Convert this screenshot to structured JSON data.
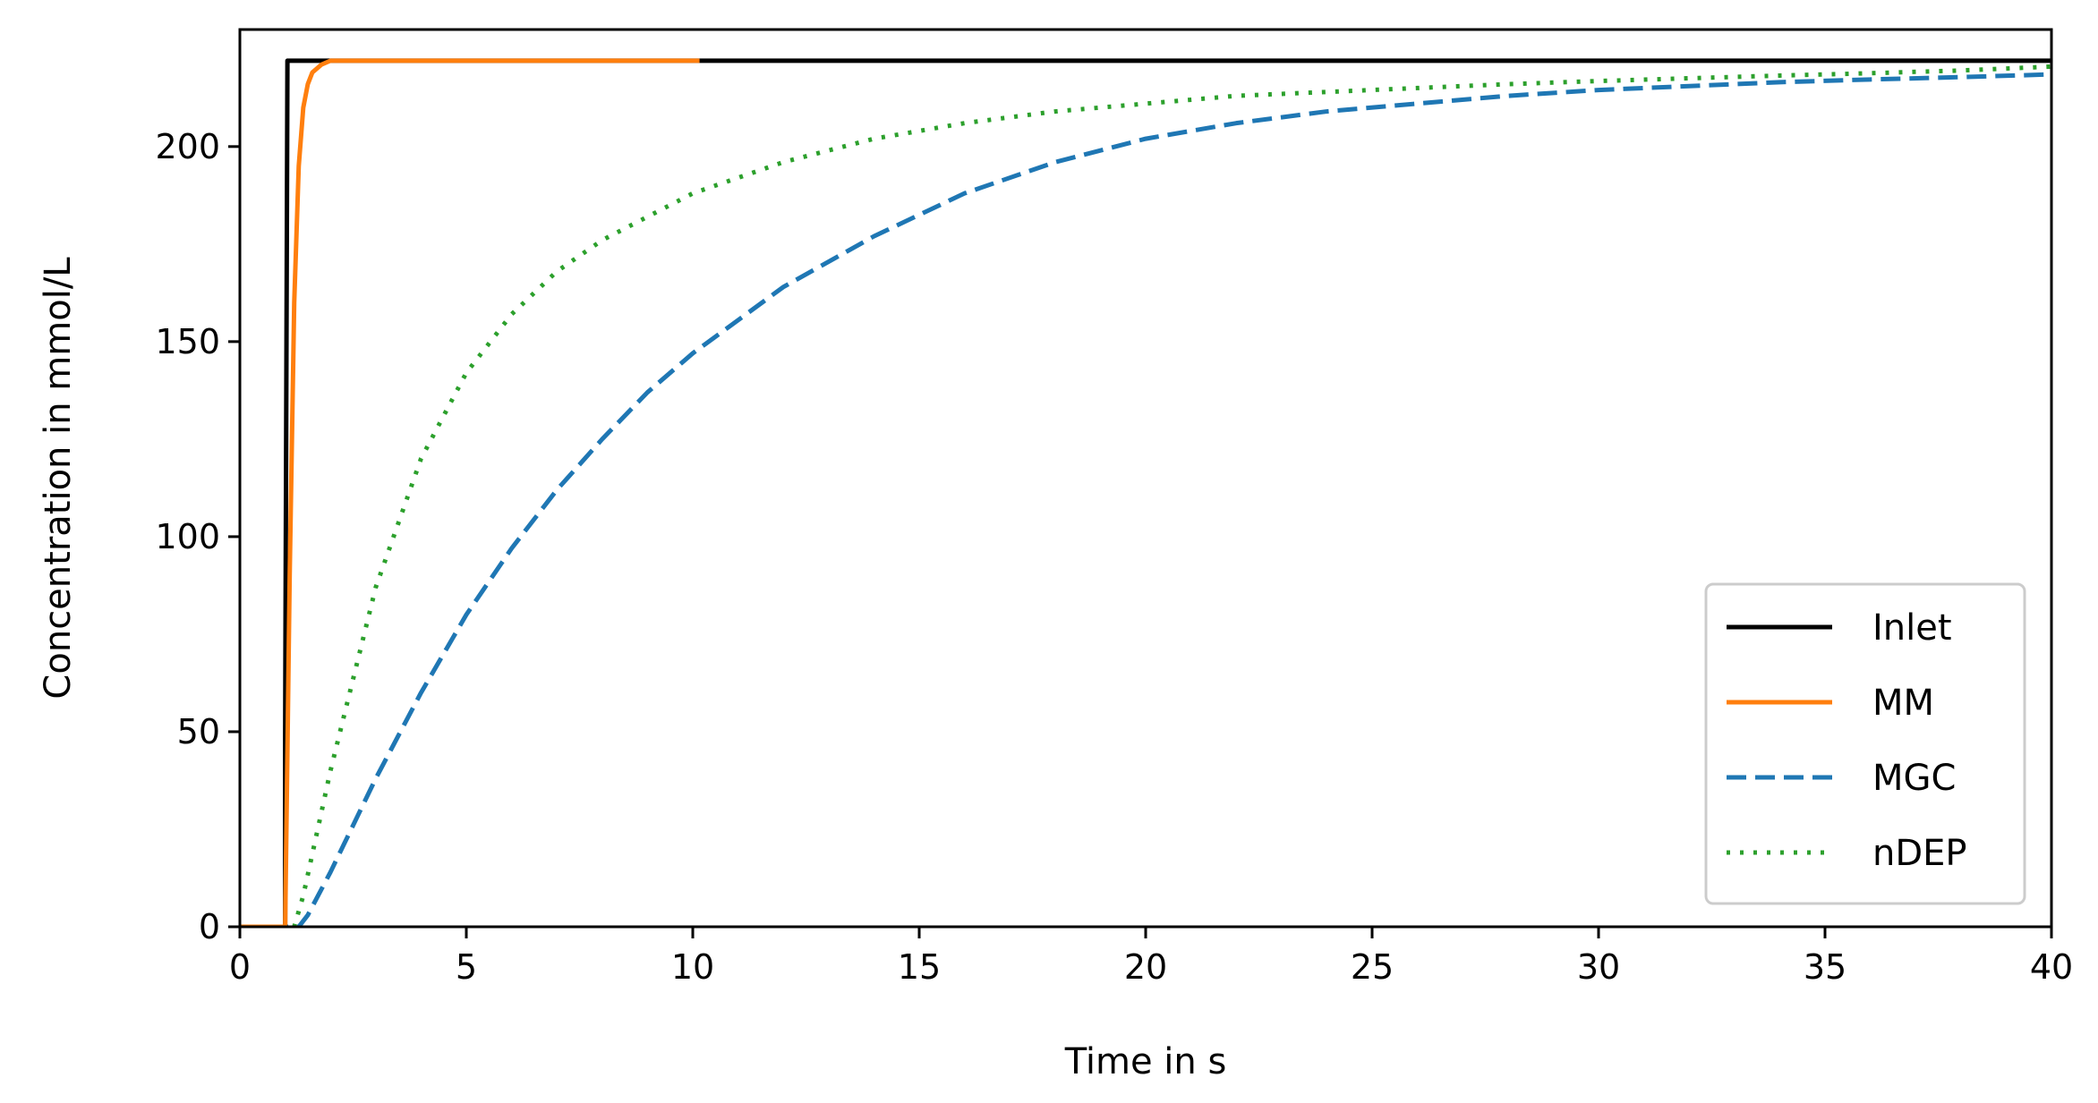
{
  "chart_data": {
    "type": "line",
    "title": "",
    "xlabel": "Time in s",
    "ylabel": "Concentration in mmol/L",
    "xlim": [
      0,
      40
    ],
    "ylim": [
      0,
      230
    ],
    "xticks": [
      0,
      5,
      10,
      15,
      20,
      25,
      30,
      35,
      40
    ],
    "yticks": [
      0,
      50,
      100,
      150,
      200
    ],
    "grid": false,
    "legend_position": "lower-right",
    "series": [
      {
        "name": "Inlet",
        "color": "#000000",
        "style": "solid",
        "x": [
          0,
          1.0,
          1.0,
          1.05,
          40
        ],
        "y": [
          0,
          0,
          50,
          222,
          222
        ]
      },
      {
        "name": "MM",
        "color": "#ff7f0e",
        "style": "solid",
        "x": [
          0,
          1.0,
          1.1,
          1.2,
          1.3,
          1.4,
          1.5,
          1.6,
          1.8,
          2.0,
          2.5,
          3.0,
          10.1
        ],
        "y": [
          0,
          0,
          90,
          160,
          195,
          210,
          216,
          219,
          221,
          222,
          222,
          222,
          222
        ]
      },
      {
        "name": "MGC",
        "color": "#1f77b4",
        "style": "dashed",
        "x": [
          0,
          1.3,
          1.5,
          2,
          3,
          4,
          5,
          6,
          7,
          8,
          9,
          10,
          12,
          14,
          16,
          18,
          20,
          22,
          24,
          26,
          28,
          30,
          32,
          34,
          36,
          38,
          40
        ],
        "y": [
          0,
          0,
          3,
          14,
          38,
          60,
          80,
          97,
          112,
          125,
          137,
          147,
          164,
          177,
          188,
          196,
          202,
          206,
          209,
          211,
          213,
          214.5,
          215.5,
          216.5,
          217.2,
          217.8,
          218.5
        ]
      },
      {
        "name": "nDEP",
        "color": "#2ca02c",
        "style": "dotted",
        "x": [
          0,
          1.2,
          1.4,
          2,
          3,
          4,
          5,
          6,
          7,
          8,
          9,
          10,
          12,
          14,
          16,
          18,
          20,
          22,
          24,
          26,
          28,
          30,
          32,
          34,
          36,
          38,
          40
        ],
        "y": [
          0,
          0,
          8,
          40,
          87,
          120,
          142,
          157,
          168,
          176,
          182,
          188,
          196,
          202,
          206,
          209,
          211,
          213,
          214,
          215,
          216,
          216.8,
          217.5,
          218.2,
          218.8,
          219.5,
          220.5
        ]
      }
    ]
  }
}
